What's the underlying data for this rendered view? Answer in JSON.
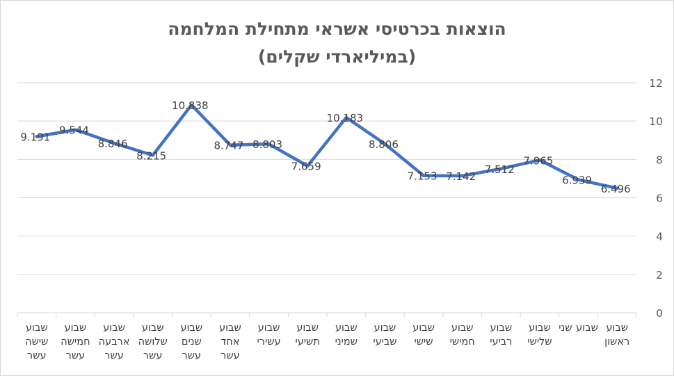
{
  "chart_data": {
    "type": "line",
    "title": [
      "הוצאות בכרטיסי אשראי מתחילת המלחמה",
      "(במיליארדי שקלים)"
    ],
    "categories": [
      "שבוע שישה עשר",
      "שבוע חמישה עשר",
      "שבוע ארבעה עשר",
      "שבוע שלושה עשר",
      "שבוע שנים עשר",
      "שבוע אחד עשר",
      "שבוע עשירי",
      "שבוע תשיעי",
      "שבוע שמיני",
      "שבוע שביעי",
      "שבוע שישי",
      "שבוע חמישי",
      "שבוע רביעי",
      "שבוע שלישי",
      "שבוע שני",
      "שבוע ראשון"
    ],
    "values": [
      9.191,
      9.544,
      8.846,
      8.215,
      10.838,
      8.747,
      8.803,
      7.659,
      10.183,
      8.806,
      7.153,
      7.142,
      7.512,
      7.965,
      6.939,
      6.496
    ],
    "data_labels": [
      "9.191",
      "9.544",
      "8.846",
      "8.215",
      "10.838",
      "8.747",
      "8.803",
      "7.659",
      "10.183",
      "8.806",
      "7.153",
      "7.142",
      "7.512",
      "7.965",
      "6.939",
      "6.496"
    ],
    "yticks": [
      "0",
      "2",
      "4",
      "6",
      "8",
      "10",
      "12"
    ],
    "ylim": [
      0,
      12
    ],
    "y_axis_side": "right",
    "grid": true,
    "legend": "none",
    "line_color": "#4472c4",
    "grid_color": "#d9d9d9",
    "text_color": "#404040"
  }
}
